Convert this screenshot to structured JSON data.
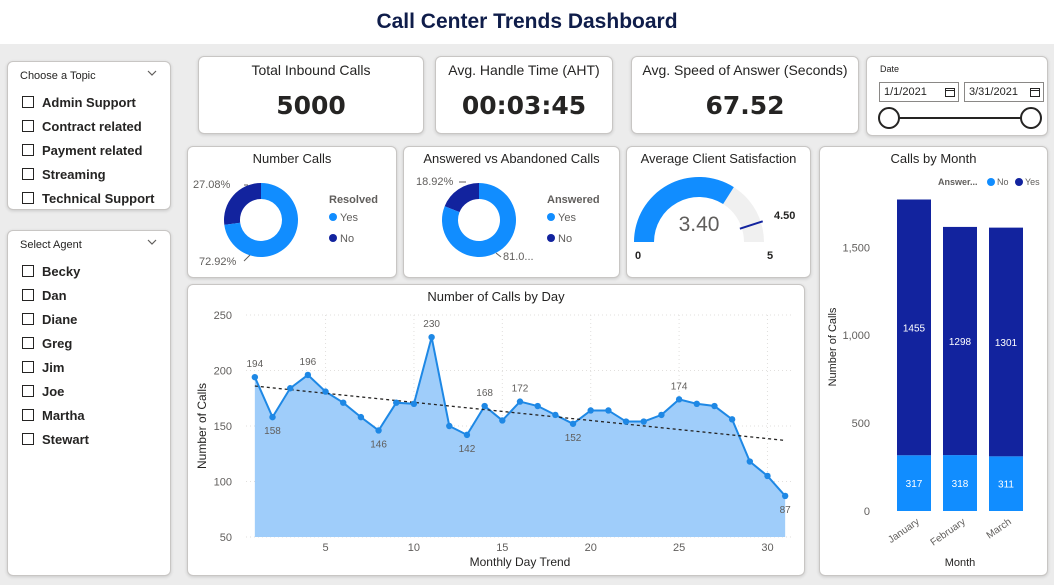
{
  "header": {
    "title": "Call Center Trends Dashboard"
  },
  "topic_slicer": {
    "title": "Choose a Topic",
    "items": [
      "Admin Support",
      "Contract related",
      "Payment related",
      "Streaming",
      "Technical Support"
    ]
  },
  "agent_slicer": {
    "title": "Select Agent",
    "items": [
      "Becky",
      "Dan",
      "Diane",
      "Greg",
      "Jim",
      "Joe",
      "Martha",
      "Stewart"
    ]
  },
  "kpis": {
    "total_calls": {
      "label": "Total Inbound Calls",
      "value": "5000"
    },
    "aht": {
      "label": "Avg. Handle Time (AHT)",
      "value": "00:03:45"
    },
    "asa": {
      "label": "Avg. Speed of Answer (Seconds)",
      "value": "67.52"
    }
  },
  "date_slicer": {
    "label": "Date",
    "start": "1/1/2021",
    "end": "3/31/2021",
    "range_start_fraction": 0,
    "range_end_fraction": 1
  },
  "colors": {
    "light_blue": "#118dff",
    "dark_blue": "#12239e",
    "area_fill": "#9fcdfa",
    "line": "#1e88e5"
  },
  "chart_data": [
    {
      "id": "number_calls",
      "type": "pie",
      "title": "Number Calls",
      "legend_title": "Resolved",
      "legend_position": "right",
      "series": [
        {
          "name": "Yes",
          "value": 72.92,
          "label": "72.92%"
        },
        {
          "name": "No",
          "value": 27.08,
          "label": "27.08%"
        }
      ]
    },
    {
      "id": "answered_vs_abandoned",
      "type": "pie",
      "title": "Answered vs Abandoned Calls",
      "legend_title": "Answered",
      "legend_position": "right",
      "series": [
        {
          "name": "Yes",
          "value": 81.08,
          "label": "81.0..."
        },
        {
          "name": "No",
          "value": 18.92,
          "label": "18.92%"
        }
      ]
    },
    {
      "id": "client_satisfaction",
      "type": "gauge",
      "title": "Average Client Satisfaction",
      "value": 3.4,
      "value_label": "3.40",
      "min": 0,
      "max": 5,
      "target": 4.5,
      "min_label": "0",
      "max_label": "5",
      "target_label": "4.50"
    },
    {
      "id": "calls_by_day",
      "type": "area",
      "title": "Number of Calls by Day",
      "xlabel": "Monthly Day Trend",
      "ylabel": "Number of Calls",
      "xlim": [
        0.5,
        31.5
      ],
      "ylim": [
        50,
        250
      ],
      "xticks": [
        5,
        10,
        15,
        20,
        25,
        30
      ],
      "yticks": [
        50,
        100,
        150,
        200,
        250
      ],
      "x": [
        1,
        2,
        3,
        4,
        5,
        6,
        7,
        8,
        9,
        10,
        11,
        12,
        13,
        14,
        15,
        16,
        17,
        18,
        19,
        20,
        21,
        22,
        23,
        24,
        25,
        26,
        27,
        28,
        29,
        30,
        31
      ],
      "values": [
        194,
        158,
        184,
        196,
        181,
        171,
        158,
        146,
        171,
        170,
        230,
        150,
        142,
        168,
        155,
        172,
        168,
        160,
        152,
        164,
        164,
        154,
        154,
        160,
        174,
        170,
        168,
        156,
        118,
        105,
        87
      ],
      "labeled": [
        {
          "x": 1,
          "text": "194",
          "pos": "above"
        },
        {
          "x": 2,
          "text": "158",
          "pos": "below"
        },
        {
          "x": 4,
          "text": "196",
          "pos": "above"
        },
        {
          "x": 8,
          "text": "146",
          "pos": "below"
        },
        {
          "x": 11,
          "text": "230",
          "pos": "above"
        },
        {
          "x": 13,
          "text": "142",
          "pos": "below"
        },
        {
          "x": 14,
          "text": "168",
          "pos": "above"
        },
        {
          "x": 16,
          "text": "172",
          "pos": "above"
        },
        {
          "x": 19,
          "text": "152",
          "pos": "below"
        },
        {
          "x": 25,
          "text": "174",
          "pos": "above"
        },
        {
          "x": 31,
          "text": "87",
          "pos": "below"
        }
      ],
      "trend": {
        "start": 186,
        "end": 137
      },
      "grid": true
    },
    {
      "id": "calls_by_month",
      "type": "bar",
      "stacked": true,
      "title": "Calls by Month",
      "xlabel": "Month",
      "ylabel": "Number of Calls",
      "legend_title": "Answer...",
      "legend_position": "top",
      "categories": [
        "January",
        "February",
        "March"
      ],
      "series": [
        {
          "name": "No",
          "values": [
            317,
            318,
            311
          ]
        },
        {
          "name": "Yes",
          "values": [
            1455,
            1298,
            1301
          ]
        }
      ],
      "ylim": [
        0,
        1900
      ],
      "yticks": [
        0,
        500,
        1000,
        1500
      ],
      "ytick_labels": [
        "0",
        "500",
        "1,000",
        "1,500"
      ]
    }
  ]
}
